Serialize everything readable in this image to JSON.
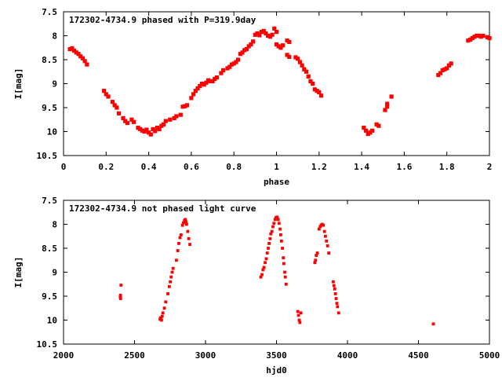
{
  "chart_data": [
    {
      "type": "scatter",
      "title": "172302-4734.9 phased with P=319.9day",
      "xlabel": "phase",
      "ylabel": "I[mag]",
      "xlim": [
        0,
        2
      ],
      "ylim": [
        10.5,
        7.5
      ],
      "y_inverted": true,
      "x_ticks": [
        "0",
        "0.2",
        "0.4",
        "0.6",
        "0.8",
        "1",
        "1.2",
        "1.4",
        "1.6",
        "1.8",
        "2"
      ],
      "y_ticks": [
        "7.5",
        "8",
        "8.5",
        "9",
        "9.5",
        "10",
        "10.5"
      ],
      "grid": false,
      "marker_color": "#ff0000",
      "series": [
        {
          "points": [
            [
              0.03,
              8.28
            ],
            [
              0.04,
              8.26
            ],
            [
              0.05,
              8.31
            ],
            [
              0.06,
              8.35
            ],
            [
              0.07,
              8.38
            ],
            [
              0.08,
              8.43
            ],
            [
              0.09,
              8.47
            ],
            [
              0.1,
              8.53
            ],
            [
              0.11,
              8.6
            ],
            [
              0.19,
              9.15
            ],
            [
              0.2,
              9.22
            ],
            [
              0.21,
              9.27
            ],
            [
              0.23,
              9.38
            ],
            [
              0.24,
              9.45
            ],
            [
              0.25,
              9.5
            ],
            [
              0.26,
              9.62
            ],
            [
              0.28,
              9.72
            ],
            [
              0.29,
              9.78
            ],
            [
              0.3,
              9.82
            ],
            [
              0.32,
              9.75
            ],
            [
              0.33,
              9.8
            ],
            [
              0.35,
              9.92
            ],
            [
              0.36,
              9.95
            ],
            [
              0.37,
              9.98
            ],
            [
              0.38,
              10.0
            ],
            [
              0.39,
              9.96
            ],
            [
              0.4,
              10.02
            ],
            [
              0.41,
              10.06
            ],
            [
              0.42,
              9.95
            ],
            [
              0.43,
              9.99
            ],
            [
              0.44,
              9.92
            ],
            [
              0.45,
              9.95
            ],
            [
              0.46,
              9.88
            ],
            [
              0.47,
              9.85
            ],
            [
              0.48,
              9.78
            ],
            [
              0.5,
              9.75
            ],
            [
              0.52,
              9.72
            ],
            [
              0.53,
              9.68
            ],
            [
              0.55,
              9.65
            ],
            [
              0.56,
              9.48
            ],
            [
              0.57,
              9.47
            ],
            [
              0.58,
              9.45
            ],
            [
              0.6,
              9.3
            ],
            [
              0.61,
              9.22
            ],
            [
              0.62,
              9.15
            ],
            [
              0.63,
              9.1
            ],
            [
              0.64,
              9.05
            ],
            [
              0.65,
              9.0
            ],
            [
              0.66,
              9.02
            ],
            [
              0.67,
              8.98
            ],
            [
              0.68,
              8.93
            ],
            [
              0.69,
              8.95
            ],
            [
              0.7,
              8.95
            ],
            [
              0.71,
              8.9
            ],
            [
              0.72,
              8.87
            ],
            [
              0.74,
              8.78
            ],
            [
              0.75,
              8.72
            ],
            [
              0.77,
              8.68
            ],
            [
              0.78,
              8.65
            ],
            [
              0.79,
              8.6
            ],
            [
              0.8,
              8.58
            ],
            [
              0.81,
              8.55
            ],
            [
              0.82,
              8.5
            ],
            [
              0.83,
              8.38
            ],
            [
              0.84,
              8.35
            ],
            [
              0.85,
              8.3
            ],
            [
              0.86,
              8.28
            ],
            [
              0.87,
              8.22
            ],
            [
              0.88,
              8.18
            ],
            [
              0.89,
              8.12
            ],
            [
              0.9,
              7.98
            ],
            [
              0.91,
              7.95
            ],
            [
              0.92,
              7.99
            ],
            [
              0.93,
              7.92
            ],
            [
              0.94,
              7.9
            ],
            [
              0.95,
              7.95
            ],
            [
              0.96,
              8.0
            ],
            [
              0.97,
              8.02
            ],
            [
              0.98,
              7.98
            ],
            [
              0.99,
              7.85
            ],
            [
              1.0,
              7.92
            ],
            [
              1.0,
              8.18
            ],
            [
              1.01,
              8.22
            ],
            [
              1.02,
              8.25
            ],
            [
              1.03,
              8.2
            ],
            [
              1.05,
              8.1
            ],
            [
              1.06,
              8.13
            ],
            [
              1.05,
              8.4
            ],
            [
              1.06,
              8.44
            ],
            [
              1.09,
              8.45
            ],
            [
              1.1,
              8.48
            ],
            [
              1.11,
              8.55
            ],
            [
              1.12,
              8.62
            ],
            [
              1.13,
              8.7
            ],
            [
              1.14,
              8.75
            ],
            [
              1.15,
              8.85
            ],
            [
              1.16,
              8.95
            ],
            [
              1.17,
              9.0
            ],
            [
              1.18,
              9.12
            ],
            [
              1.19,
              9.15
            ],
            [
              1.2,
              9.18
            ],
            [
              1.21,
              9.25
            ],
            [
              1.41,
              9.92
            ],
            [
              1.42,
              9.98
            ],
            [
              1.43,
              10.05
            ],
            [
              1.44,
              10.02
            ],
            [
              1.45,
              9.98
            ],
            [
              1.47,
              9.85
            ],
            [
              1.48,
              9.88
            ],
            [
              1.51,
              9.55
            ],
            [
              1.52,
              9.48
            ],
            [
              1.52,
              9.42
            ],
            [
              1.54,
              9.27
            ],
            [
              1.76,
              8.82
            ],
            [
              1.77,
              8.78
            ],
            [
              1.78,
              8.72
            ],
            [
              1.79,
              8.7
            ],
            [
              1.8,
              8.68
            ],
            [
              1.81,
              8.62
            ],
            [
              1.82,
              8.58
            ],
            [
              1.9,
              8.1
            ],
            [
              1.91,
              8.08
            ],
            [
              1.92,
              8.05
            ],
            [
              1.93,
              8.02
            ],
            [
              1.94,
              8.0
            ],
            [
              1.95,
              8.0
            ],
            [
              1.96,
              8.02
            ],
            [
              1.97,
              8.0
            ],
            [
              1.99,
              8.03
            ],
            [
              2.0,
              8.05
            ]
          ]
        }
      ]
    },
    {
      "type": "scatter",
      "title": "172302-4734.9 not phased light curve",
      "xlabel": "hjd0",
      "ylabel": "I[mag]",
      "xlim": [
        2000,
        5000
      ],
      "ylim": [
        10.5,
        7.5
      ],
      "y_inverted": true,
      "x_ticks": [
        "2000",
        "2500",
        "3000",
        "3500",
        "4000",
        "4500",
        "5000"
      ],
      "y_ticks": [
        "7.5",
        "8",
        "8.5",
        "9",
        "9.5",
        "10",
        "10.5"
      ],
      "grid": false,
      "marker_color": "#ff0000",
      "series": [
        {
          "points": [
            [
              2400,
              9.52
            ],
            [
              2401,
              9.48
            ],
            [
              2402,
              9.55
            ],
            [
              2405,
              9.27
            ],
            [
              2680,
              9.98
            ],
            [
              2685,
              9.95
            ],
            [
              2690,
              10.0
            ],
            [
              2695,
              9.92
            ],
            [
              2700,
              9.85
            ],
            [
              2710,
              9.75
            ],
            [
              2720,
              9.62
            ],
            [
              2735,
              9.45
            ],
            [
              2745,
              9.3
            ],
            [
              2752,
              9.2
            ],
            [
              2758,
              9.1
            ],
            [
              2765,
              9.0
            ],
            [
              2772,
              8.92
            ],
            [
              2795,
              8.75
            ],
            [
              2805,
              8.55
            ],
            [
              2812,
              8.4
            ],
            [
              2820,
              8.28
            ],
            [
              2828,
              8.22
            ],
            [
              2838,
              8.02
            ],
            [
              2845,
              7.97
            ],
            [
              2852,
              7.92
            ],
            [
              2858,
              7.9
            ],
            [
              2862,
              7.95
            ],
            [
              2867,
              8.0
            ],
            [
              2875,
              8.15
            ],
            [
              2882,
              8.3
            ],
            [
              2890,
              8.42
            ],
            [
              3390,
              9.1
            ],
            [
              3398,
              9.05
            ],
            [
              3405,
              8.95
            ],
            [
              3412,
              8.9
            ],
            [
              3420,
              8.8
            ],
            [
              3428,
              8.72
            ],
            [
              3435,
              8.6
            ],
            [
              3442,
              8.5
            ],
            [
              3448,
              8.4
            ],
            [
              3455,
              8.3
            ],
            [
              3460,
              8.2
            ],
            [
              3468,
              8.15
            ],
            [
              3475,
              8.05
            ],
            [
              3482,
              7.98
            ],
            [
              3490,
              7.9
            ],
            [
              3497,
              7.86
            ],
            [
              3505,
              7.85
            ],
            [
              3512,
              7.9
            ],
            [
              3518,
              7.98
            ],
            [
              3525,
              8.1
            ],
            [
              3530,
              8.22
            ],
            [
              3535,
              8.35
            ],
            [
              3542,
              8.5
            ],
            [
              3548,
              8.7
            ],
            [
              3552,
              8.82
            ],
            [
              3558,
              9.0
            ],
            [
              3562,
              9.1
            ],
            [
              3568,
              9.25
            ],
            [
              3650,
              9.82
            ],
            [
              3655,
              9.9
            ],
            [
              3660,
              10.0
            ],
            [
              3665,
              10.05
            ],
            [
              3672,
              9.85
            ],
            [
              3770,
              8.8
            ],
            [
              3775,
              8.75
            ],
            [
              3780,
              8.65
            ],
            [
              3788,
              8.6
            ],
            [
              3800,
              8.1
            ],
            [
              3808,
              8.05
            ],
            [
              3815,
              8.02
            ],
            [
              3822,
              8.0
            ],
            [
              3830,
              8.02
            ],
            [
              3838,
              8.15
            ],
            [
              3845,
              8.25
            ],
            [
              3852,
              8.35
            ],
            [
              3860,
              8.45
            ],
            [
              3868,
              8.6
            ],
            [
              3900,
              9.2
            ],
            [
              3905,
              9.28
            ],
            [
              3910,
              9.35
            ],
            [
              3915,
              9.45
            ],
            [
              3920,
              9.55
            ],
            [
              3925,
              9.65
            ],
            [
              3930,
              9.72
            ],
            [
              3938,
              9.85
            ],
            [
              4605,
              10.08
            ]
          ]
        }
      ]
    }
  ]
}
